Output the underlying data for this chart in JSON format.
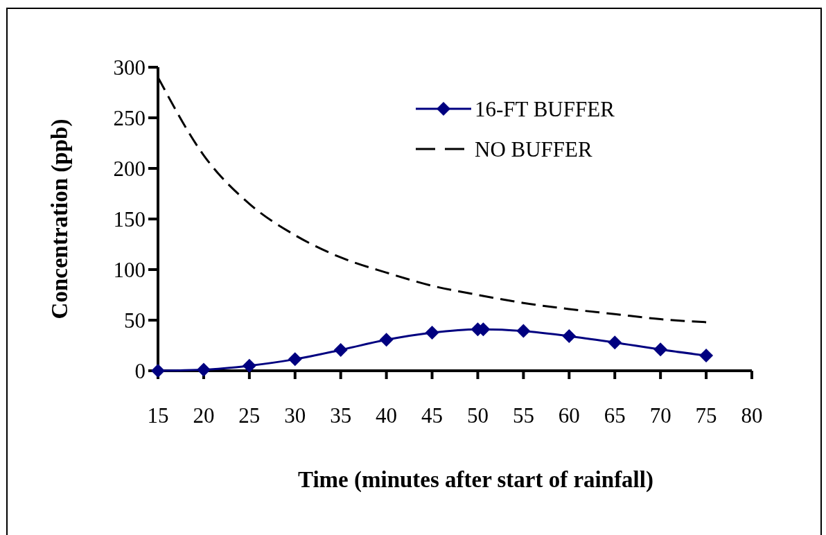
{
  "chart_data": {
    "type": "line",
    "xlabel": "Time (minutes after start of rainfall)",
    "ylabel": "Concentration (ppb)",
    "xlim": [
      15,
      80
    ],
    "xticks": [
      15,
      20,
      25,
      30,
      35,
      40,
      45,
      50,
      55,
      60,
      65,
      70,
      75,
      80
    ],
    "ylim": [
      0,
      300
    ],
    "yticks": [
      0,
      50,
      100,
      150,
      200,
      250,
      300
    ],
    "grid": false,
    "legend": "top right",
    "series": [
      {
        "name": "16-FT BUFFER",
        "color": "#000080",
        "marker": "diamond",
        "line_style": "solid",
        "x": [
          15,
          20,
          25,
          30,
          35,
          40,
          45,
          50,
          50.6,
          55,
          60,
          65,
          70,
          75
        ],
        "values": [
          0,
          1,
          5,
          11.4,
          20.6,
          30.6,
          37.7,
          41,
          41,
          39.3,
          34.3,
          27.9,
          21,
          15
        ]
      },
      {
        "name": "NO BUFFER",
        "color": "#000000",
        "marker": "none",
        "line_style": "dashed",
        "x": [
          15,
          20,
          25,
          30,
          35,
          40,
          45,
          50,
          55,
          60,
          65,
          70,
          75
        ],
        "values": [
          290,
          213,
          165,
          134,
          112,
          97,
          84,
          75,
          67,
          61,
          56,
          51,
          48
        ]
      }
    ]
  }
}
